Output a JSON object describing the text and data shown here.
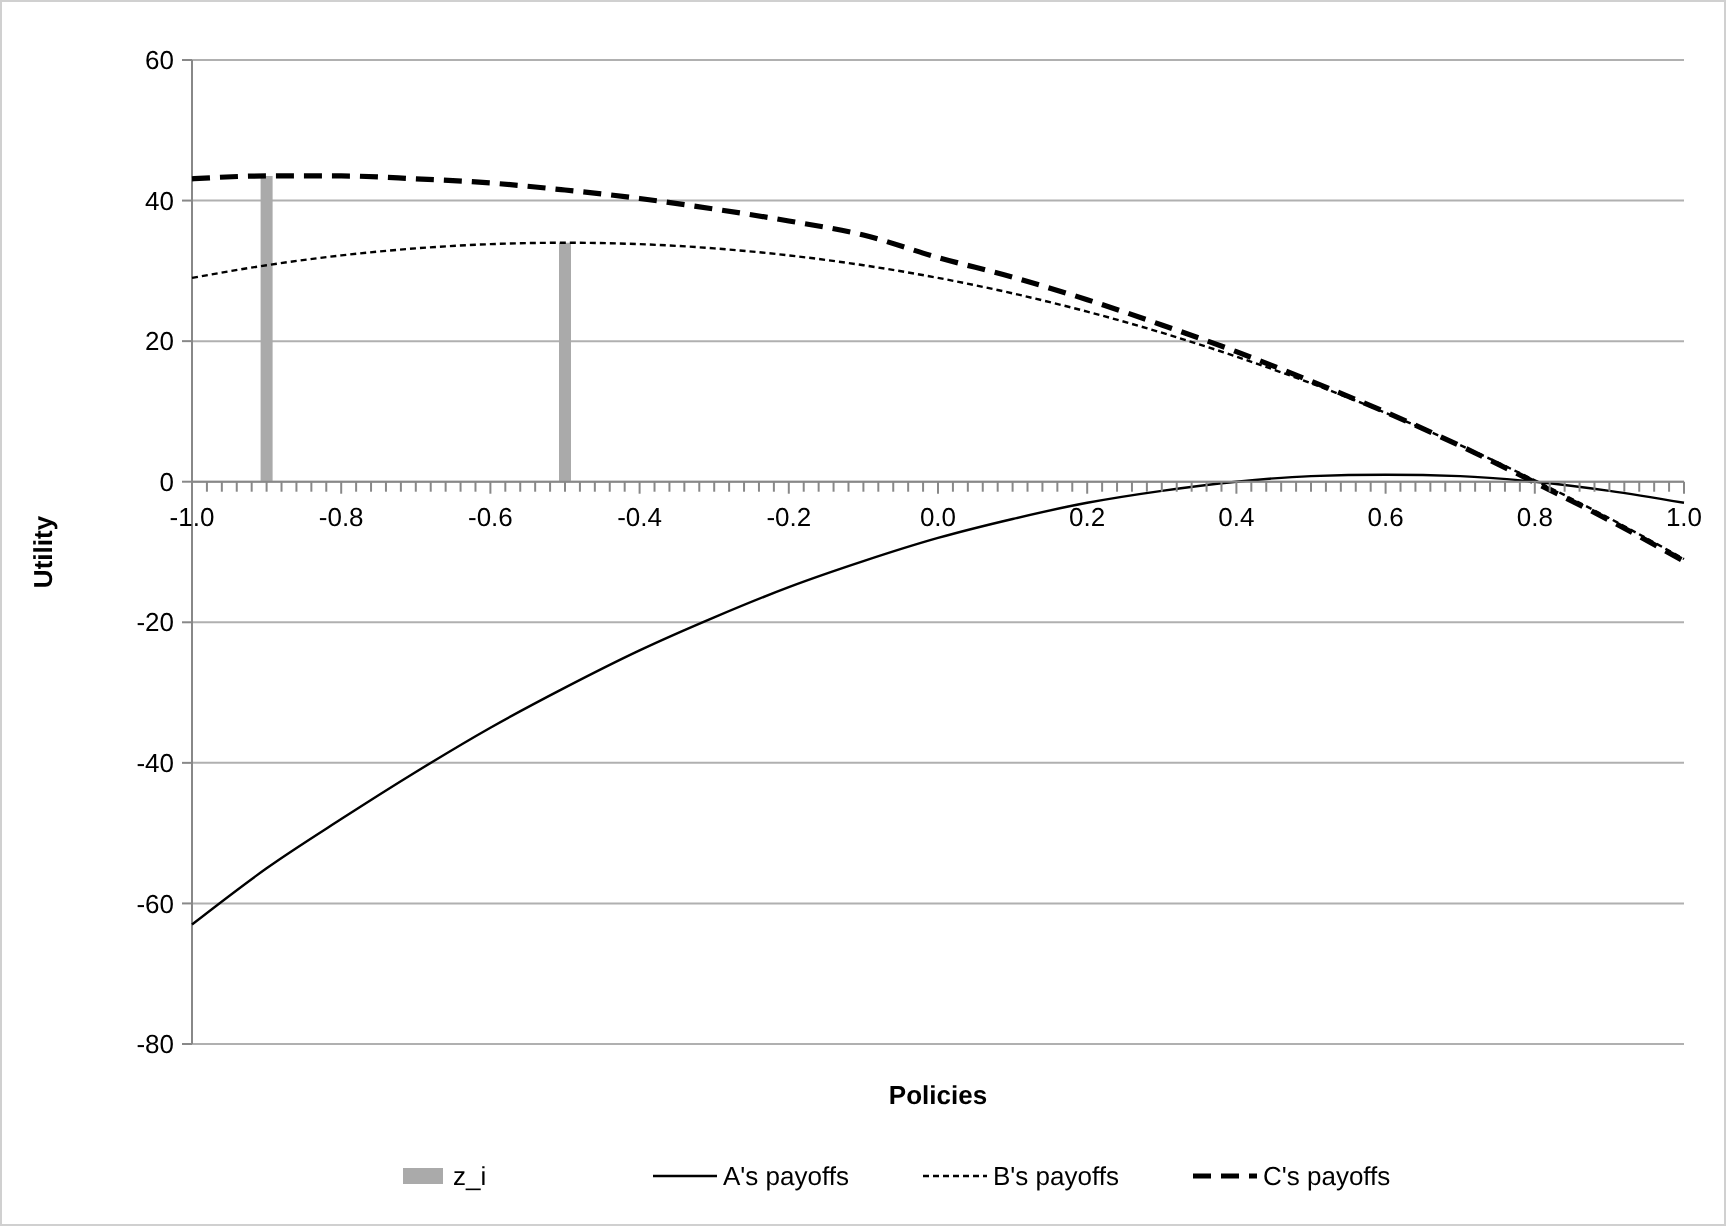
{
  "chart_data": {
    "type": "line",
    "xlabel": "Policies",
    "ylabel": "Utility",
    "xlim": [
      -1,
      1
    ],
    "ylim": [
      -80,
      60
    ],
    "yticks": [
      -80,
      -60,
      -40,
      -20,
      0,
      20,
      40,
      60
    ],
    "xticks": [
      {
        "value": -1,
        "label": "-1.0"
      },
      {
        "value": -0.8,
        "label": "-0.8"
      },
      {
        "value": -0.6,
        "label": "-0.6"
      },
      {
        "value": -0.4,
        "label": "-0.4"
      },
      {
        "value": -0.2,
        "label": "-0.2"
      },
      {
        "value": 0,
        "label": "0.0"
      },
      {
        "value": 0.2,
        "label": "0.2"
      },
      {
        "value": 0.4,
        "label": "0.4"
      },
      {
        "value": 0.6,
        "label": "0.6"
      },
      {
        "value": 0.8,
        "label": "0.8"
      },
      {
        "value": 1,
        "label": "1.0"
      },
      {
        "value": -0.98,
        "label": null
      },
      {
        "value": -0.96,
        "label": null
      },
      {
        "value": -0.94,
        "label": null
      },
      {
        "value": -0.92,
        "label": null
      },
      {
        "value": -0.9,
        "label": null
      },
      {
        "value": -0.88,
        "label": null
      },
      {
        "value": -0.86,
        "label": null
      },
      {
        "value": -0.84,
        "label": null
      },
      {
        "value": -0.82,
        "label": null
      },
      {
        "value": -0.78,
        "label": null
      },
      {
        "value": -0.76,
        "label": null
      },
      {
        "value": -0.74,
        "label": null
      },
      {
        "value": -0.72,
        "label": null
      },
      {
        "value": -0.7,
        "label": null
      },
      {
        "value": -0.68,
        "label": null
      },
      {
        "value": -0.66,
        "label": null
      },
      {
        "value": -0.64,
        "label": null
      },
      {
        "value": -0.62,
        "label": null
      },
      {
        "value": -0.58,
        "label": null
      },
      {
        "value": -0.56,
        "label": null
      },
      {
        "value": -0.54,
        "label": null
      },
      {
        "value": -0.52,
        "label": null
      },
      {
        "value": -0.5,
        "label": null
      },
      {
        "value": -0.48,
        "label": null
      },
      {
        "value": -0.46,
        "label": null
      },
      {
        "value": -0.44,
        "label": null
      },
      {
        "value": -0.42,
        "label": null
      },
      {
        "value": -0.38,
        "label": null
      },
      {
        "value": -0.36,
        "label": null
      },
      {
        "value": -0.34,
        "label": null
      },
      {
        "value": -0.32,
        "label": null
      },
      {
        "value": -0.3,
        "label": null
      },
      {
        "value": -0.28,
        "label": null
      },
      {
        "value": -0.26,
        "label": null
      },
      {
        "value": -0.24,
        "label": null
      },
      {
        "value": -0.22,
        "label": null
      },
      {
        "value": -0.18,
        "label": null
      },
      {
        "value": -0.16,
        "label": null
      },
      {
        "value": -0.14,
        "label": null
      },
      {
        "value": -0.12,
        "label": null
      },
      {
        "value": -0.1,
        "label": null
      },
      {
        "value": -0.08,
        "label": null
      },
      {
        "value": -0.06,
        "label": null
      },
      {
        "value": -0.04,
        "label": null
      },
      {
        "value": -0.02,
        "label": null
      },
      {
        "value": 0.02,
        "label": null
      },
      {
        "value": 0.04,
        "label": null
      },
      {
        "value": 0.06,
        "label": null
      },
      {
        "value": 0.08,
        "label": null
      },
      {
        "value": 0.1,
        "label": null
      },
      {
        "value": 0.12,
        "label": null
      },
      {
        "value": 0.14,
        "label": null
      },
      {
        "value": 0.16,
        "label": null
      },
      {
        "value": 0.18,
        "label": null
      },
      {
        "value": 0.22,
        "label": null
      },
      {
        "value": 0.24,
        "label": null
      },
      {
        "value": 0.26,
        "label": null
      },
      {
        "value": 0.28,
        "label": null
      },
      {
        "value": 0.3,
        "label": null
      },
      {
        "value": 0.32,
        "label": null
      },
      {
        "value": 0.34,
        "label": null
      },
      {
        "value": 0.36,
        "label": null
      },
      {
        "value": 0.38,
        "label": null
      },
      {
        "value": 0.42,
        "label": null
      },
      {
        "value": 0.44,
        "label": null
      },
      {
        "value": 0.46,
        "label": null
      },
      {
        "value": 0.48,
        "label": null
      },
      {
        "value": 0.5,
        "label": null
      },
      {
        "value": 0.52,
        "label": null
      },
      {
        "value": 0.54,
        "label": null
      },
      {
        "value": 0.56,
        "label": null
      },
      {
        "value": 0.58,
        "label": null
      },
      {
        "value": 0.62,
        "label": null
      },
      {
        "value": 0.64,
        "label": null
      },
      {
        "value": 0.66,
        "label": null
      },
      {
        "value": 0.68,
        "label": null
      },
      {
        "value": 0.7,
        "label": null
      },
      {
        "value": 0.72,
        "label": null
      },
      {
        "value": 0.74,
        "label": null
      },
      {
        "value": 0.76,
        "label": null
      },
      {
        "value": 0.78,
        "label": null
      },
      {
        "value": 0.82,
        "label": null
      },
      {
        "value": 0.84,
        "label": null
      },
      {
        "value": 0.86,
        "label": null
      },
      {
        "value": 0.88,
        "label": null
      },
      {
        "value": 0.9,
        "label": null
      },
      {
        "value": 0.92,
        "label": null
      },
      {
        "value": 0.94,
        "label": null
      },
      {
        "value": 0.96,
        "label": null
      },
      {
        "value": 0.98,
        "label": null
      }
    ],
    "x": [
      -1,
      -0.9,
      -0.8,
      -0.7,
      -0.6,
      -0.5,
      -0.4,
      -0.3,
      -0.2,
      -0.1,
      0,
      0.1,
      0.2,
      0.3,
      0.4,
      0.5,
      0.6,
      0.7,
      0.8,
      0.9,
      1
    ],
    "grid": "y",
    "legend": "bottom",
    "marker": "none",
    "series": [
      {
        "name": "z_i",
        "type": "bar",
        "color": "#aaaaaa",
        "x": [
          -0.9,
          -0.5
        ],
        "values": [
          43.5,
          34
        ]
      },
      {
        "name": "A's payoffs",
        "color": "#000000",
        "line_style": "solid",
        "values": [
          -63,
          -55,
          -48,
          -41.3,
          -35,
          -29.3,
          -24,
          -19.3,
          -15,
          -11.3,
          -8,
          -5.3,
          -3,
          -1.3,
          0,
          0.8,
          1,
          0.8,
          0,
          -1.3,
          -3
        ]
      },
      {
        "name": "B's payoffs",
        "color": "#000000",
        "line_style": "dotted",
        "values": [
          29,
          30.8,
          32.2,
          33.2,
          33.8,
          34,
          33.8,
          33.2,
          32.2,
          30.8,
          29,
          26.8,
          24.2,
          21.2,
          17.8,
          14,
          9.8,
          5.2,
          0.2,
          -5.2,
          -11
        ]
      },
      {
        "name": "C's payoffs",
        "color": "#000000",
        "line_style": "dashed",
        "values": [
          43.1,
          43.5,
          43.5,
          43.1,
          42.5,
          41.5,
          40.3,
          38.8,
          37.1,
          35.1,
          31.9,
          29.1,
          25.9,
          22.3,
          18.5,
          14.3,
          9.9,
          5.1,
          -0.1,
          -5.5,
          -11.3
        ]
      }
    ]
  }
}
